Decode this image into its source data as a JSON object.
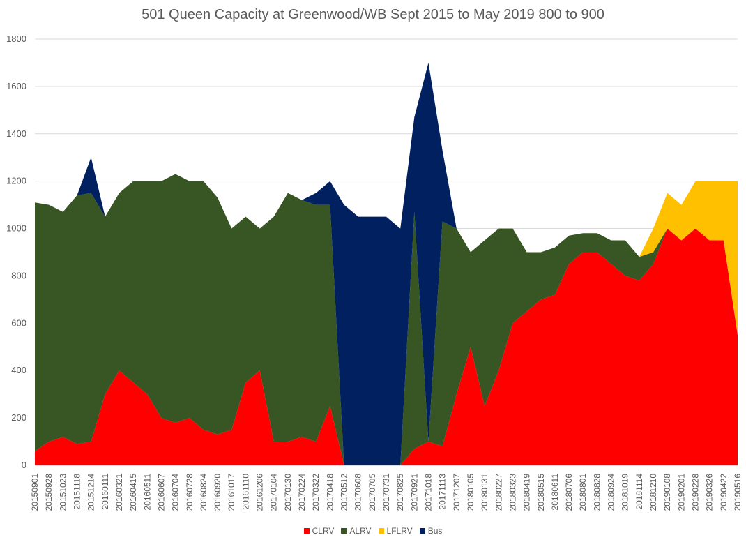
{
  "chart_data": {
    "type": "area",
    "stacked": true,
    "title": "501 Queen Capacity at Greenwood/WB Sept 2015 to May 2019 800 to 900",
    "xlabel": "",
    "ylabel": "",
    "ylim": [
      0,
      1800
    ],
    "yticks": [
      0,
      200,
      400,
      600,
      800,
      1000,
      1200,
      1400,
      1600,
      1800
    ],
    "grid": true,
    "legend_position": "bottom",
    "x_tick_labels": [
      "20150901",
      "20150928",
      "20151023",
      "20151118",
      "20151214",
      "20160111",
      "20160321",
      "20160415",
      "20160511",
      "20160607",
      "20160704",
      "20160728",
      "20160824",
      "20160920",
      "20161017",
      "20161110",
      "20161206",
      "20170104",
      "20170130",
      "20170224",
      "20170322",
      "20170418",
      "20170512",
      "20170608",
      "20170705",
      "20170731",
      "20170825",
      "20170921",
      "20171018",
      "20171113",
      "20171207",
      "20180105",
      "20180131",
      "20180227",
      "20180323",
      "20180419",
      "20180515",
      "20180611",
      "20180706",
      "20180801",
      "20180828",
      "20180924",
      "20181019",
      "20181114",
      "20181210",
      "20190108",
      "20190201",
      "20190228",
      "20190326",
      "20190422",
      "20190516"
    ],
    "x": [
      "2015-09-01",
      "2015-09-28",
      "2015-10-23",
      "2015-11-18",
      "2015-12-14",
      "2016-01-11",
      "2016-03-21",
      "2016-04-15",
      "2016-05-11",
      "2016-06-07",
      "2016-07-04",
      "2016-07-28",
      "2016-08-24",
      "2016-09-20",
      "2016-10-17",
      "2016-11-10",
      "2016-12-06",
      "2017-01-04",
      "2017-01-30",
      "2017-02-24",
      "2017-03-22",
      "2017-04-18",
      "2017-05-12",
      "2017-06-08",
      "2017-07-05",
      "2017-07-31",
      "2017-08-25",
      "2017-09-21",
      "2017-10-18",
      "2017-11-13",
      "2017-12-07",
      "2018-01-05",
      "2018-01-31",
      "2018-02-27",
      "2018-03-23",
      "2018-04-19",
      "2018-05-15",
      "2018-06-11",
      "2018-07-06",
      "2018-08-01",
      "2018-08-28",
      "2018-09-24",
      "2018-10-19",
      "2018-11-14",
      "2018-12-10",
      "2019-01-08",
      "2019-02-01",
      "2019-02-28",
      "2019-03-26",
      "2019-04-22",
      "2019-05-16"
    ],
    "series": [
      {
        "name": "CLRV",
        "color": "#ff0000",
        "values": [
          60,
          100,
          120,
          90,
          100,
          300,
          400,
          350,
          300,
          200,
          180,
          200,
          150,
          130,
          150,
          350,
          400,
          100,
          100,
          120,
          100,
          250,
          0,
          0,
          0,
          0,
          0,
          70,
          100,
          80,
          300,
          500,
          250,
          400,
          600,
          650,
          700,
          720,
          850,
          900,
          900,
          850,
          800,
          780,
          850,
          1000,
          950,
          1000,
          950,
          950,
          550
        ]
      },
      {
        "name": "ALRV",
        "color": "#375623",
        "values": [
          1050,
          1000,
          950,
          1050,
          1050,
          750,
          750,
          850,
          900,
          1000,
          1050,
          1000,
          1050,
          1000,
          850,
          700,
          600,
          950,
          1050,
          1000,
          1000,
          850,
          0,
          0,
          0,
          0,
          0,
          1000,
          0,
          950,
          700,
          400,
          700,
          600,
          400,
          250,
          200,
          200,
          120,
          80,
          80,
          100,
          150,
          100,
          50,
          0,
          0,
          0,
          0,
          0,
          0
        ]
      },
      {
        "name": "LFLRV",
        "color": "#ffc000",
        "values": [
          0,
          0,
          0,
          0,
          0,
          0,
          0,
          0,
          0,
          0,
          0,
          0,
          0,
          0,
          0,
          0,
          0,
          0,
          0,
          0,
          0,
          0,
          0,
          0,
          0,
          0,
          0,
          0,
          0,
          0,
          0,
          0,
          0,
          0,
          0,
          0,
          0,
          0,
          0,
          0,
          0,
          0,
          0,
          0,
          100,
          150,
          150,
          200,
          250,
          250,
          650
        ]
      },
      {
        "name": "Bus",
        "color": "#002060",
        "values": [
          0,
          0,
          0,
          0,
          150,
          0,
          0,
          0,
          0,
          0,
          0,
          0,
          0,
          0,
          0,
          0,
          0,
          0,
          0,
          0,
          50,
          100,
          1100,
          1050,
          1050,
          1050,
          1000,
          400,
          1600,
          300,
          0,
          0,
          0,
          0,
          0,
          0,
          0,
          0,
          0,
          0,
          0,
          0,
          0,
          0,
          0,
          0,
          0,
          0,
          0,
          0,
          0
        ]
      }
    ]
  }
}
